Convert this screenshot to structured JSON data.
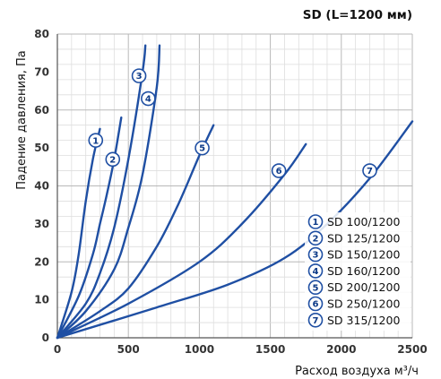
{
  "chart_data": {
    "type": "line",
    "title": "SD (L=1200 мм)",
    "xlabel": "Расход воздуха м³/ч",
    "ylabel": "Падение давления, Па",
    "xlim": [
      0,
      2500
    ],
    "ylim": [
      0,
      80
    ],
    "xticks": [
      0,
      500,
      1000,
      1500,
      2000,
      2500
    ],
    "yticks": [
      0,
      10,
      20,
      30,
      40,
      50,
      60,
      70,
      80
    ],
    "grid": true,
    "legend_position": "right",
    "line_color": "#1f4fa3",
    "series": [
      {
        "name": "SD 100/1200",
        "marker": "1",
        "x": [
          0,
          100,
          150,
          200,
          250,
          300
        ],
        "y": [
          0,
          12,
          22,
          36,
          47,
          55
        ],
        "marker_at": [
          270,
          52
        ]
      },
      {
        "name": "SD 125/1200",
        "marker": "2",
        "x": [
          0,
          150,
          250,
          300,
          350,
          400,
          450
        ],
        "y": [
          0,
          11,
          22,
          30,
          38,
          47,
          58
        ],
        "marker_at": [
          390,
          47
        ]
      },
      {
        "name": "SD 150/1200",
        "marker": "3",
        "x": [
          0,
          200,
          300,
          400,
          500,
          600,
          620
        ],
        "y": [
          0,
          9,
          17,
          29,
          47,
          70,
          77
        ],
        "marker_at": [
          575,
          69
        ]
      },
      {
        "name": "SD 160/1200",
        "marker": "4",
        "x": [
          0,
          200,
          400,
          500,
          600,
          700,
          720
        ],
        "y": [
          0,
          7,
          18,
          29,
          43,
          66,
          77
        ],
        "marker_at": [
          640,
          63
        ]
      },
      {
        "name": "SD 200/1200",
        "marker": "5",
        "x": [
          0,
          300,
          500,
          700,
          850,
          1000,
          1100
        ],
        "y": [
          0,
          7,
          13,
          24,
          35,
          48,
          56
        ],
        "marker_at": [
          1020,
          50
        ]
      },
      {
        "name": "SD 250/1200",
        "marker": "6",
        "x": [
          0,
          500,
          1000,
          1300,
          1600,
          1750
        ],
        "y": [
          0,
          9,
          20,
          30,
          43,
          51
        ],
        "marker_at": [
          1560,
          44
        ]
      },
      {
        "name": "SD 315/1200",
        "marker": "7",
        "x": [
          0,
          700,
          1200,
          1600,
          1900,
          2200,
          2500
        ],
        "y": [
          0,
          8,
          14,
          21,
          30,
          42,
          57
        ],
        "marker_at": [
          2200,
          44
        ]
      }
    ]
  }
}
